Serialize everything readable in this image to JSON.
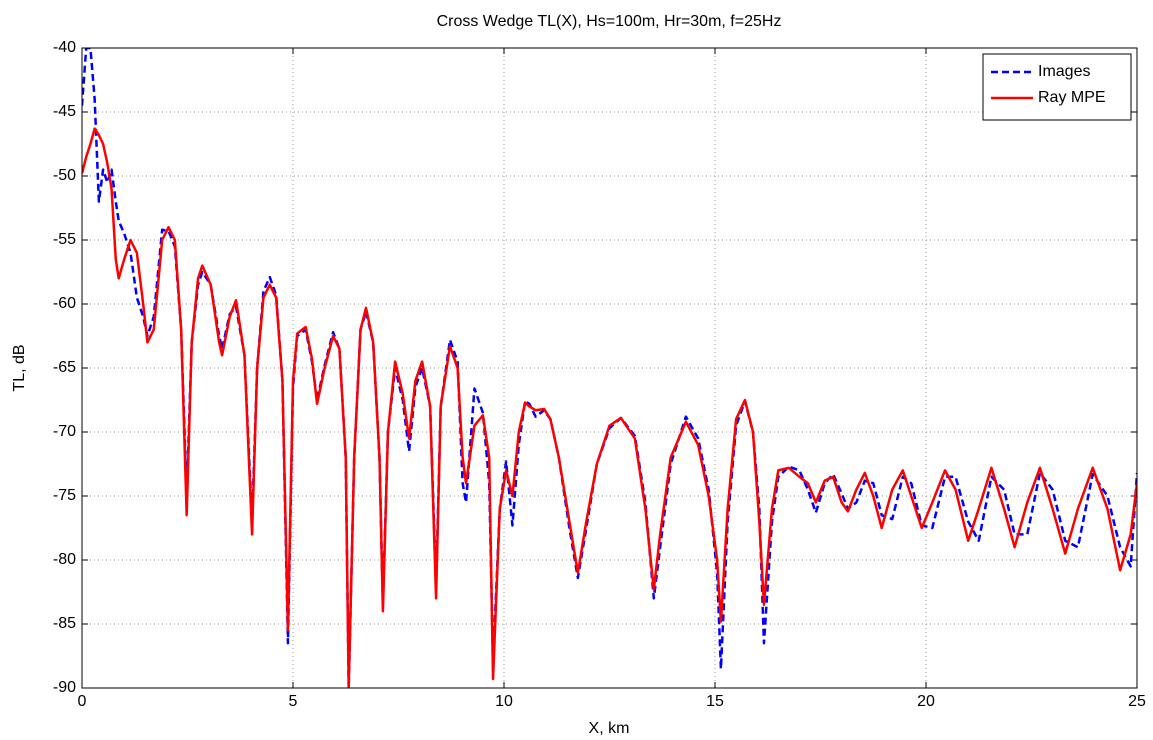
{
  "chart_data": {
    "type": "line",
    "title": "Cross Wedge TL(X), Hs=100m, Hr=30m, f=25Hz",
    "x_label": "X, km",
    "y_label": "TL, dB",
    "xlim": [
      0,
      25
    ],
    "xticks": [
      0,
      5,
      10,
      15,
      20,
      25
    ],
    "ylim": [
      -90,
      -40
    ],
    "yticks": [
      -90,
      -85,
      -80,
      -75,
      -70,
      -65,
      -60,
      -55,
      -50,
      -45,
      -40
    ],
    "grid": true,
    "legend": "upper right",
    "x": [
      0,
      0.1,
      0.2,
      0.3,
      0.4,
      0.5,
      0.6,
      0.7,
      0.8,
      0.87,
      1.0,
      1.15,
      1.3,
      1.45,
      1.55,
      1.7,
      1.9,
      2.05,
      2.2,
      2.35,
      2.48,
      2.6,
      2.75,
      2.85,
      3.05,
      3.25,
      3.32,
      3.5,
      3.65,
      3.85,
      4.03,
      4.15,
      4.3,
      4.45,
      4.6,
      4.75,
      4.88,
      5.0,
      5.1,
      5.3,
      5.45,
      5.57,
      5.75,
      5.95,
      6.1,
      6.25,
      6.32,
      6.45,
      6.6,
      6.73,
      6.9,
      7.05,
      7.13,
      7.25,
      7.42,
      7.6,
      7.75,
      7.9,
      8.06,
      8.25,
      8.39,
      8.5,
      8.72,
      8.9,
      9.02,
      9.1,
      9.3,
      9.5,
      9.65,
      9.74,
      9.9,
      10.05,
      10.2,
      10.35,
      10.5,
      10.6,
      10.75,
      10.95,
      11.1,
      11.3,
      11.55,
      11.75,
      11.95,
      12.2,
      12.5,
      12.77,
      13.1,
      13.35,
      13.55,
      13.7,
      13.95,
      14.31,
      14.6,
      14.85,
      15.05,
      15.14,
      15.3,
      15.5,
      15.71,
      15.9,
      16.05,
      16.16,
      16.35,
      16.5,
      16.75,
      17.0,
      17.2,
      17.39,
      17.6,
      17.8,
      18.0,
      18.15,
      18.35,
      18.55,
      18.75,
      18.95,
      19.2,
      19.45,
      19.65,
      19.9,
      20.15,
      20.45,
      20.7,
      21.0,
      21.25,
      21.55,
      21.85,
      22.1,
      22.4,
      22.7,
      23.0,
      23.3,
      23.6,
      23.95,
      24.3,
      24.6,
      24.85,
      25.0
    ],
    "series": [
      {
        "name": "Images",
        "color": "#0000ff",
        "dash": true,
        "values": [
          -44.5,
          -40,
          -40,
          -44,
          -52,
          -49.5,
          -50.5,
          -49.5,
          -52,
          -53.5,
          -54.5,
          -56,
          -59.5,
          -61,
          -62.5,
          -61,
          -54.2,
          -54.3,
          -55.5,
          -62,
          -75,
          -63,
          -58.5,
          -57.5,
          -58.5,
          -62.5,
          -63.5,
          -60.8,
          -60.2,
          -64,
          -77,
          -65,
          -59,
          -57.9,
          -59.3,
          -66,
          -86.5,
          -66.5,
          -62.5,
          -62,
          -64.5,
          -67.5,
          -64.8,
          -62.2,
          -63.5,
          -72,
          -90,
          -72,
          -62,
          -60.6,
          -63,
          -72,
          -83.5,
          -70,
          -65,
          -67.5,
          -71.5,
          -66.5,
          -65,
          -68,
          -82,
          -68,
          -62.8,
          -64.5,
          -74,
          -75.5,
          -66.6,
          -68.5,
          -74,
          -88,
          -76,
          -72.3,
          -77.3,
          -71,
          -67.6,
          -67.8,
          -68.8,
          -68.3,
          -69,
          -72,
          -77.5,
          -81.4,
          -77.5,
          -72.5,
          -69.7,
          -68.9,
          -70.3,
          -75.5,
          -83,
          -79,
          -72.5,
          -68.8,
          -70.5,
          -74.5,
          -81,
          -88.5,
          -77,
          -69.5,
          -67.6,
          -70,
          -76,
          -86.5,
          -77,
          -73.5,
          -72.7,
          -73,
          -74.5,
          -76.3,
          -74,
          -73.3,
          -74.8,
          -76,
          -75.5,
          -73.8,
          -74,
          -76.5,
          -76.8,
          -73.5,
          -74,
          -77.3,
          -77.5,
          -73.5,
          -73.5,
          -77,
          -78.5,
          -73.5,
          -74.5,
          -78,
          -78,
          -73.2,
          -74.5,
          -78.5,
          -79,
          -73.3,
          -75,
          -79,
          -80.5,
          -73.2
        ]
      },
      {
        "name": "Ray MPE",
        "color": "#ff0000",
        "dash": false,
        "values": [
          -49.8,
          -48.5,
          -47.5,
          -46.3,
          -46.8,
          -47.5,
          -49,
          -51,
          -56.5,
          -58,
          -56.5,
          -55,
          -56,
          -60,
          -63,
          -62,
          -55,
          -54,
          -55,
          -62,
          -76.5,
          -63,
          -58,
          -57,
          -58.5,
          -63,
          -64,
          -61,
          -59.7,
          -64,
          -78,
          -65,
          -59.5,
          -58.5,
          -59.5,
          -66,
          -85.5,
          -66,
          -62.3,
          -61.8,
          -64.3,
          -67.8,
          -65,
          -62.5,
          -63.5,
          -72,
          -90,
          -72,
          -62,
          -60.3,
          -63,
          -72,
          -84,
          -70,
          -64.5,
          -67,
          -70.5,
          -66,
          -64.5,
          -68,
          -83,
          -68,
          -63.3,
          -65,
          -72,
          -74,
          -69.5,
          -68.7,
          -72,
          -89.3,
          -76,
          -73,
          -75,
          -70,
          -67.7,
          -68,
          -68.3,
          -68.2,
          -69,
          -72,
          -77,
          -81,
          -77,
          -72.5,
          -69.5,
          -68.9,
          -70.5,
          -76,
          -82.3,
          -78,
          -72,
          -69.2,
          -71,
          -75,
          -80,
          -84.8,
          -76,
          -69,
          -67.5,
          -70,
          -77,
          -83.5,
          -76,
          -73,
          -72.8,
          -73.5,
          -74,
          -75.5,
          -73.8,
          -73.5,
          -75.5,
          -76.2,
          -74.5,
          -73.2,
          -75,
          -77.5,
          -74.5,
          -73,
          -75,
          -77.5,
          -75.5,
          -73,
          -74.5,
          -78.5,
          -76,
          -72.8,
          -76,
          -79,
          -75.5,
          -72.8,
          -76,
          -79.5,
          -76,
          -72.8,
          -76,
          -80.8,
          -78,
          -74
        ]
      }
    ]
  }
}
